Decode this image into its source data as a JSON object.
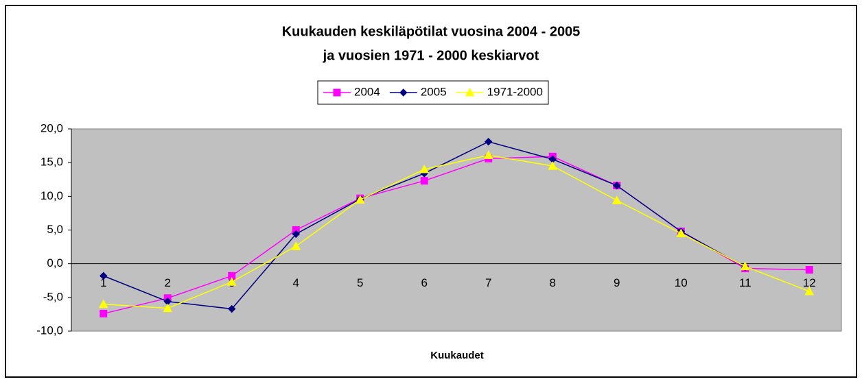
{
  "chart_data": {
    "type": "line",
    "title": [
      "Kuukauden keskiläpötilat vuosina  2004 - 2005",
      "ja vuosien 1971 - 2000 keskiarvot"
    ],
    "x_label": "Kuukaudet",
    "categories": [
      "1",
      "2",
      "3",
      "4",
      "5",
      "6",
      "7",
      "8",
      "9",
      "10",
      "11",
      "12"
    ],
    "series": [
      {
        "name": "2004",
        "color": "#ff00ff",
        "marker": "square",
        "values": [
          -7.4,
          -5.1,
          -1.8,
          5.0,
          9.7,
          12.3,
          15.6,
          15.9,
          11.6,
          4.8,
          -0.7,
          -0.9
        ]
      },
      {
        "name": "2005",
        "color": "#000080",
        "marker": "diamond",
        "values": [
          -1.8,
          -5.6,
          -6.7,
          4.4,
          9.6,
          13.4,
          18.1,
          15.5,
          11.6,
          4.8,
          -0.5,
          null
        ]
      },
      {
        "name": "1971-2000",
        "color": "#ffff00",
        "marker": "triangle",
        "values": [
          -6.0,
          -6.6,
          -2.7,
          2.6,
          9.5,
          14.0,
          16.1,
          14.5,
          9.4,
          4.5,
          -0.4,
          -4.1
        ]
      }
    ],
    "ylim": [
      -10,
      20
    ],
    "yticks": [
      {
        "value": -10,
        "label": "-10,0"
      },
      {
        "value": -5,
        "label": "-5,0"
      },
      {
        "value": 0,
        "label": "0,0"
      },
      {
        "value": 5,
        "label": "5,0"
      },
      {
        "value": 10,
        "label": "10,0"
      },
      {
        "value": 15,
        "label": "15,0"
      },
      {
        "value": 20,
        "label": "20,0"
      }
    ],
    "plot_background": "#c0c0c0",
    "legend": "top"
  }
}
